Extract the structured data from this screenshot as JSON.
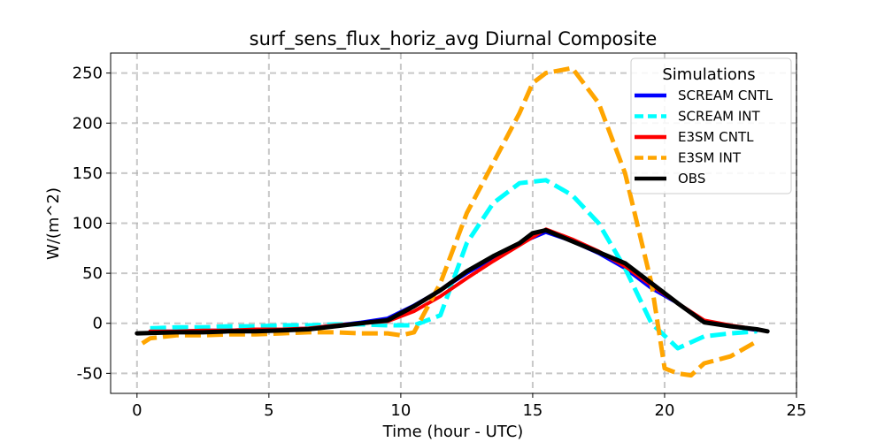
{
  "chart_data": {
    "type": "line",
    "title": "surf_sens_flux_horiz_avg Diurnal Composite",
    "xlabel": "Time (hour - UTC)",
    "ylabel": "W/(m^2)",
    "xlim": [
      -1,
      25
    ],
    "ylim": [
      -70,
      270
    ],
    "xticks": [
      0,
      5,
      10,
      15,
      20,
      25
    ],
    "yticks": [
      -50,
      0,
      50,
      100,
      150,
      200,
      250
    ],
    "grid": true,
    "legend": {
      "title": "Simulations",
      "placement": "top-right"
    },
    "series": [
      {
        "name": "SCREAM CNTL",
        "color": "#0000ff",
        "style": "solid",
        "x": [
          0.5,
          1.5,
          2.5,
          3.5,
          4.5,
          5.5,
          6.5,
          7.5,
          8.5,
          9.5,
          10.5,
          11.5,
          12.5,
          13.5,
          14.5,
          15.5,
          16.5,
          17.5,
          18.5,
          19.5,
          20.5,
          21.5,
          22.5,
          23.5
        ],
        "y": [
          -8,
          -8,
          -7,
          -7,
          -6,
          -6,
          -5,
          -2,
          1,
          5,
          18,
          33,
          50,
          65,
          80,
          91,
          82,
          70,
          55,
          35,
          20,
          2,
          -3,
          -7
        ]
      },
      {
        "name": "SCREAM INT",
        "color": "#00ffff",
        "style": "dashed",
        "x": [
          0.5,
          1.5,
          2.5,
          3.5,
          4.5,
          5.5,
          6.5,
          7.5,
          8.5,
          9.5,
          10.5,
          11.5,
          12.5,
          13.5,
          14.5,
          15.5,
          16.5,
          17.5,
          18.5,
          19.5,
          20.5,
          21.5,
          22.5,
          23.5
        ],
        "y": [
          -5,
          -4,
          -4,
          -3,
          -3,
          -2,
          -2,
          -1,
          -1,
          -2,
          -2,
          8,
          80,
          120,
          140,
          143,
          128,
          100,
          55,
          0,
          -25,
          -13,
          -10,
          -8
        ]
      },
      {
        "name": "E3SM CNTL",
        "color": "#ff0000",
        "style": "solid",
        "x": [
          0.5,
          1.5,
          2.5,
          3.5,
          4.5,
          5.5,
          6.5,
          7.5,
          8.5,
          9.5,
          10.5,
          11.5,
          12.5,
          13.5,
          14.5,
          15.5,
          16.5,
          17.5,
          18.5,
          19.5,
          20.5,
          21.5,
          22.5,
          23.5
        ],
        "y": [
          -8,
          -8,
          -7,
          -7,
          -6,
          -6,
          -5,
          -2,
          0,
          2,
          12,
          27,
          45,
          62,
          78,
          94,
          84,
          72,
          57,
          38,
          20,
          3,
          -2,
          -6
        ]
      },
      {
        "name": "E3SM INT",
        "color": "#ffa500",
        "style": "dashed",
        "x": [
          0.2,
          0.5,
          1.5,
          2.5,
          3.5,
          4.5,
          5.5,
          6.5,
          7.5,
          8.5,
          9.5,
          10.0,
          10.5,
          11.5,
          12.5,
          13.5,
          14.5,
          15.0,
          15.5,
          16.5,
          17.5,
          18.5,
          19.5,
          20.0,
          20.5,
          21.0,
          21.5,
          22.5,
          23.5
        ],
        "y": [
          -20,
          -15,
          -12,
          -12,
          -11,
          -11,
          -10,
          -9,
          -9,
          -10,
          -10,
          -12,
          -9,
          40,
          110,
          160,
          210,
          240,
          250,
          255,
          220,
          150,
          40,
          -45,
          -50,
          -52,
          -40,
          -33,
          -18
        ]
      },
      {
        "name": "OBS",
        "color": "#000000",
        "style": "solid",
        "x": [
          0.0,
          1.5,
          2.5,
          3.5,
          4.5,
          5.5,
          6.5,
          7.5,
          8.5,
          9.5,
          10.5,
          11.5,
          12.5,
          13.5,
          14.5,
          15.0,
          15.5,
          16.5,
          17.5,
          18.5,
          19.5,
          20.5,
          21.5,
          22.5,
          23.5,
          23.9
        ],
        "y": [
          -10,
          -9,
          -9,
          -8,
          -8,
          -7,
          -6,
          -3,
          0,
          3,
          17,
          33,
          52,
          67,
          80,
          90,
          93,
          82,
          71,
          60,
          40,
          20,
          1,
          -3,
          -6,
          -8
        ]
      }
    ]
  }
}
